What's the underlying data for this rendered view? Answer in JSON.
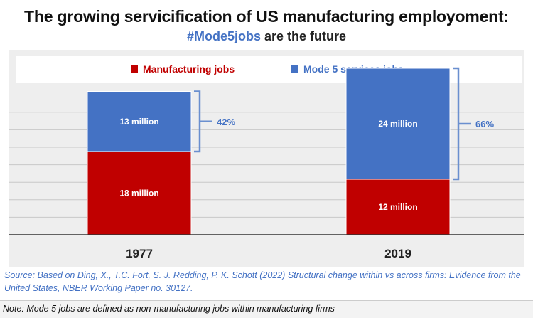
{
  "header": {
    "title": "The growing servicification of US manufacturing employoment:",
    "subtitle_hashtag": "#Mode5jobs",
    "subtitle_rest": " are the future"
  },
  "chart_data": {
    "type": "bar",
    "stacked": true,
    "categories": [
      "1977",
      "2019"
    ],
    "series": [
      {
        "name": "Manufacturing jobs",
        "color": "#c00000",
        "values": [
          18,
          12
        ],
        "labels": [
          "18 million",
          "12 million"
        ]
      },
      {
        "name": "Mode 5 services jobs",
        "color": "#4472c4",
        "values": [
          13,
          24
        ],
        "labels": [
          "13 million",
          "24 million"
        ]
      }
    ],
    "annotations": [
      {
        "category": "1977",
        "text": "42%"
      },
      {
        "category": "2019",
        "text": "66%"
      }
    ],
    "unit": "million",
    "ylim": [
      0,
      40
    ],
    "legend_position": "top"
  },
  "footer": {
    "source": "Source: Based on Ding, X., T.C. Fort, S. J. Redding, P. K. Schott (2022) Structural change within vs across firms: Evidence from the United States, NBER Working Paper no. 30127.",
    "note": "Note: Mode 5 jobs are defined as non-manufacturing jobs within manufacturing firms"
  }
}
